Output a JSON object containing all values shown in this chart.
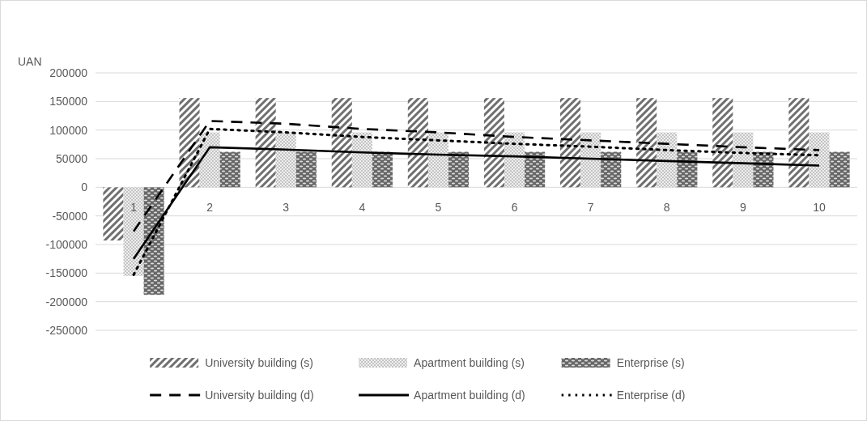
{
  "chart_data": {
    "type": "bar",
    "ylabel": "UAN",
    "categories": [
      "1",
      "2",
      "3",
      "4",
      "5",
      "6",
      "7",
      "8",
      "9",
      "10"
    ],
    "series": [
      {
        "name": "University building (s)",
        "color": "#707070",
        "values": [
          -93000,
          156000,
          156000,
          156000,
          156000,
          156000,
          156000,
          156000,
          156000,
          156000
        ]
      },
      {
        "name": "Apartment building (s)",
        "color": "#b0b0b0",
        "values": [
          -155000,
          96000,
          96000,
          96000,
          96000,
          96000,
          96000,
          96000,
          96000,
          96000
        ]
      },
      {
        "name": "Enterprise (s)",
        "color": "#666666",
        "values": [
          -188000,
          62000,
          62000,
          62000,
          62000,
          62000,
          62000,
          62000,
          62000,
          62000
        ]
      },
      {
        "name": "University building (d)",
        "type": "line",
        "line_style": "dashed",
        "color": "#000000",
        "values": [
          -77000,
          116000,
          111000,
          102000,
          96000,
          88000,
          82000,
          76000,
          70000,
          65000
        ]
      },
      {
        "name": "Apartment building (d)",
        "type": "line",
        "line_style": "solid",
        "color": "#000000",
        "values": [
          -125000,
          70000,
          66000,
          61000,
          57000,
          54000,
          50000,
          46000,
          42000,
          38000
        ]
      },
      {
        "name": "Enterprise (d)",
        "type": "line",
        "line_style": "dotted",
        "color": "#000000",
        "values": [
          -153000,
          102000,
          96000,
          88000,
          82000,
          76000,
          71000,
          65000,
          60000,
          56000
        ]
      }
    ],
    "ylim": [
      -250000,
      200000
    ],
    "yticks": [
      -250000,
      -200000,
      -150000,
      -100000,
      -50000,
      0,
      50000,
      100000,
      150000,
      200000
    ],
    "grid": "y",
    "legend": "bottom"
  }
}
